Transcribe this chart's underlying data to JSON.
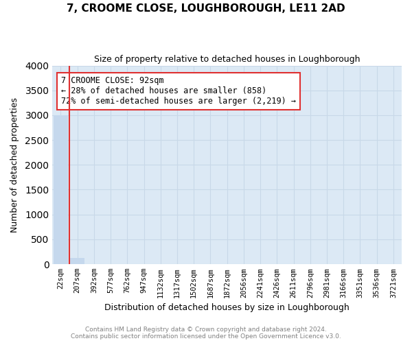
{
  "title": "7, CROOME CLOSE, LOUGHBOROUGH, LE11 2AD",
  "subtitle": "Size of property relative to detached houses in Loughborough",
  "xlabel": "Distribution of detached houses by size in Loughborough",
  "ylabel": "Number of detached properties",
  "bar_labels": [
    "22sqm",
    "207sqm",
    "392sqm",
    "577sqm",
    "762sqm",
    "947sqm",
    "1132sqm",
    "1317sqm",
    "1502sqm",
    "1687sqm",
    "1872sqm",
    "2056sqm",
    "2241sqm",
    "2426sqm",
    "2611sqm",
    "2796sqm",
    "2981sqm",
    "3166sqm",
    "3351sqm",
    "3536sqm",
    "3721sqm"
  ],
  "bar_heights": [
    3000,
    120,
    0,
    0,
    0,
    0,
    0,
    0,
    0,
    0,
    0,
    0,
    0,
    0,
    0,
    0,
    0,
    0,
    0,
    0,
    0
  ],
  "bar_color": "#c5d8ed",
  "vline_color": "#e03030",
  "annotation_box_text": "7 CROOME CLOSE: 92sqm\n← 28% of detached houses are smaller (858)\n72% of semi-detached houses are larger (2,219) →",
  "ylim": [
    0,
    4000
  ],
  "yticks": [
    0,
    500,
    1000,
    1500,
    2000,
    2500,
    3000,
    3500,
    4000
  ],
  "grid_color": "#c8d8e8",
  "background_color": "#dce9f5",
  "footer_line1": "Contains HM Land Registry data © Crown copyright and database right 2024.",
  "footer_line2": "Contains public sector information licensed under the Open Government Licence v3.0."
}
